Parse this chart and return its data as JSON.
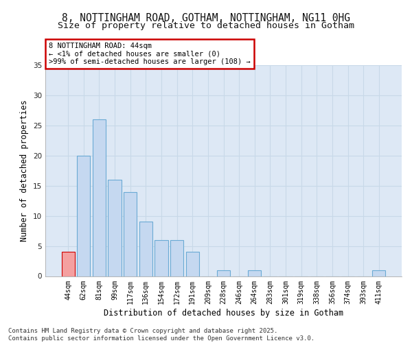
{
  "title1": "8, NOTTINGHAM ROAD, GOTHAM, NOTTINGHAM, NG11 0HG",
  "title2": "Size of property relative to detached houses in Gotham",
  "xlabel": "Distribution of detached houses by size in Gotham",
  "ylabel": "Number of detached properties",
  "categories": [
    "44sqm",
    "62sqm",
    "81sqm",
    "99sqm",
    "117sqm",
    "136sqm",
    "154sqm",
    "172sqm",
    "191sqm",
    "209sqm",
    "228sqm",
    "246sqm",
    "264sqm",
    "283sqm",
    "301sqm",
    "319sqm",
    "338sqm",
    "356sqm",
    "374sqm",
    "393sqm",
    "411sqm"
  ],
  "values": [
    4,
    20,
    26,
    16,
    14,
    9,
    6,
    6,
    4,
    0,
    1,
    0,
    1,
    0,
    0,
    0,
    0,
    0,
    0,
    0,
    1
  ],
  "bar_color": "#c5d8f0",
  "bar_edge_color": "#6aaad4",
  "highlight_index": 0,
  "highlight_color": "#f4a0a0",
  "highlight_edge_color": "#cc0000",
  "annotation_text": "8 NOTTINGHAM ROAD: 44sqm\n← <1% of detached houses are smaller (0)\n>99% of semi-detached houses are larger (108) →",
  "annotation_box_color": "#ffffff",
  "annotation_box_edge_color": "#cc0000",
  "ylim": [
    0,
    35
  ],
  "yticks": [
    0,
    5,
    10,
    15,
    20,
    25,
    30,
    35
  ],
  "grid_color": "#c8d8e8",
  "bg_color": "#dde8f5",
  "footer": "Contains HM Land Registry data © Crown copyright and database right 2025.\nContains public sector information licensed under the Open Government Licence v3.0.",
  "title_fontsize": 10.5,
  "subtitle_fontsize": 9.5,
  "tick_fontsize": 7,
  "ylabel_fontsize": 8.5,
  "xlabel_fontsize": 8.5,
  "annotation_fontsize": 7.5,
  "footer_fontsize": 6.5
}
